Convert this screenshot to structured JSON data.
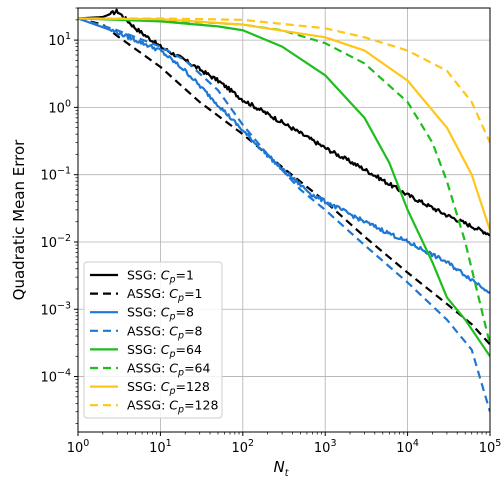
{
  "chart_data": {
    "type": "line",
    "xlabel": "N",
    "xlabel_sub": "t",
    "ylabel": "Quadratic Mean Error",
    "xscale": "log",
    "yscale": "log",
    "xlim": [
      1,
      100000
    ],
    "ylim": [
      1.5e-05,
      30
    ],
    "grid": true,
    "legend_position": "lower-left",
    "x_ticks": [
      {
        "value": 1,
        "base": "10",
        "exp": "0"
      },
      {
        "value": 10,
        "base": "10",
        "exp": "1"
      },
      {
        "value": 100,
        "base": "10",
        "exp": "2"
      },
      {
        "value": 1000,
        "base": "10",
        "exp": "3"
      },
      {
        "value": 10000,
        "base": "10",
        "exp": "4"
      },
      {
        "value": 100000,
        "base": "10",
        "exp": "5"
      }
    ],
    "y_ticks": [
      {
        "value": 0.0001,
        "base": "10",
        "exp": "−4"
      },
      {
        "value": 0.001,
        "base": "10",
        "exp": "−3"
      },
      {
        "value": 0.01,
        "base": "10",
        "exp": "−2"
      },
      {
        "value": 0.1,
        "base": "10",
        "exp": "−1"
      },
      {
        "value": 1,
        "base": "10",
        "exp": "0"
      },
      {
        "value": 10,
        "base": "10",
        "exp": "1"
      }
    ],
    "series": [
      {
        "name": "SSG: C_p=1",
        "method": "SSG",
        "cp": "1",
        "color": "#000000",
        "dash": "solid",
        "noise": true,
        "points": [
          [
            1,
            21
          ],
          [
            2,
            22
          ],
          [
            3,
            27
          ],
          [
            5,
            15
          ],
          [
            10,
            8
          ],
          [
            20,
            5
          ],
          [
            50,
            2.5
          ],
          [
            100,
            1.3
          ],
          [
            300,
            0.6
          ],
          [
            1000,
            0.25
          ],
          [
            3000,
            0.12
          ],
          [
            10000,
            0.05
          ],
          [
            30000,
            0.025
          ],
          [
            100000,
            0.013
          ]
        ]
      },
      {
        "name": "ASSG: C_p=1",
        "method": "ASSG",
        "cp": "1",
        "color": "#000000",
        "dash": "dashed",
        "noise": false,
        "points": [
          [
            1,
            21
          ],
          [
            2,
            17
          ],
          [
            3,
            11.5
          ],
          [
            10,
            4
          ],
          [
            30,
            1.2
          ],
          [
            100,
            0.4
          ],
          [
            300,
            0.13
          ],
          [
            1000,
            0.04
          ],
          [
            3000,
            0.012
          ],
          [
            10000,
            0.0035
          ],
          [
            30000,
            0.0012
          ],
          [
            60000,
            0.0006
          ],
          [
            100000,
            0.0003
          ]
        ]
      },
      {
        "name": "SSG: C_p=8",
        "method": "SSG",
        "cp": "8",
        "color": "#1f77d4",
        "dash": "solid",
        "noise": true,
        "points": [
          [
            1,
            21
          ],
          [
            3,
            13
          ],
          [
            5,
            10
          ],
          [
            10,
            7
          ],
          [
            20,
            3.5
          ],
          [
            50,
            1.1
          ],
          [
            100,
            0.45
          ],
          [
            300,
            0.12
          ],
          [
            700,
            0.05
          ],
          [
            1000,
            0.04
          ],
          [
            3000,
            0.02
          ],
          [
            10000,
            0.01
          ],
          [
            30000,
            0.005
          ],
          [
            100000,
            0.0018
          ]
        ]
      },
      {
        "name": "ASSG: C_p=8",
        "method": "ASSG",
        "cp": "8",
        "color": "#1f77d4",
        "dash": "dashed",
        "noise": false,
        "points": [
          [
            1,
            21
          ],
          [
            3,
            14
          ],
          [
            10,
            8
          ],
          [
            20,
            5
          ],
          [
            50,
            1.8
          ],
          [
            100,
            0.55
          ],
          [
            200,
            0.2
          ],
          [
            500,
            0.06
          ],
          [
            1000,
            0.03
          ],
          [
            3000,
            0.009
          ],
          [
            10000,
            0.0025
          ],
          [
            30000,
            0.0007
          ],
          [
            60000,
            0.00025
          ],
          [
            100000,
            3e-05
          ]
        ]
      },
      {
        "name": "SSG: C_p=64",
        "method": "SSG",
        "cp": "64",
        "color": "#1fbd1f",
        "dash": "solid",
        "noise": false,
        "points": [
          [
            1,
            21
          ],
          [
            10,
            19
          ],
          [
            50,
            16
          ],
          [
            100,
            14
          ],
          [
            300,
            8
          ],
          [
            1000,
            3
          ],
          [
            3000,
            0.7
          ],
          [
            6000,
            0.15
          ],
          [
            10000,
            0.03
          ],
          [
            20000,
            0.005
          ],
          [
            30000,
            0.0015
          ],
          [
            50000,
            0.0007
          ],
          [
            100000,
            0.0002
          ]
        ]
      },
      {
        "name": "ASSG: C_p=64",
        "method": "ASSG",
        "cp": "64",
        "color": "#1fbd1f",
        "dash": "dashed",
        "noise": false,
        "points": [
          [
            1,
            21
          ],
          [
            10,
            20
          ],
          [
            100,
            17
          ],
          [
            300,
            14
          ],
          [
            1000,
            9
          ],
          [
            3000,
            4.5
          ],
          [
            10000,
            1.2
          ],
          [
            20000,
            0.3
          ],
          [
            30000,
            0.08
          ],
          [
            50000,
            0.01
          ],
          [
            100000,
            0.0003
          ]
        ]
      },
      {
        "name": "SSG: C_p=128",
        "method": "SSG",
        "cp": "128",
        "color": "#ffc61a",
        "dash": "solid",
        "noise": false,
        "points": [
          [
            1,
            21
          ],
          [
            10,
            20.5
          ],
          [
            100,
            17
          ],
          [
            1000,
            11
          ],
          [
            3000,
            7
          ],
          [
            10000,
            2.5
          ],
          [
            30000,
            0.5
          ],
          [
            60000,
            0.1
          ],
          [
            100000,
            0.015
          ]
        ]
      },
      {
        "name": "ASSG: C_p=128",
        "method": "ASSG",
        "cp": "128",
        "color": "#ffc61a",
        "dash": "dashed",
        "noise": false,
        "points": [
          [
            1,
            21
          ],
          [
            10,
            21
          ],
          [
            100,
            20
          ],
          [
            1000,
            15
          ],
          [
            3000,
            11
          ],
          [
            10000,
            7
          ],
          [
            30000,
            3.5
          ],
          [
            60000,
            1.2
          ],
          [
            100000,
            0.3
          ]
        ]
      }
    ]
  }
}
